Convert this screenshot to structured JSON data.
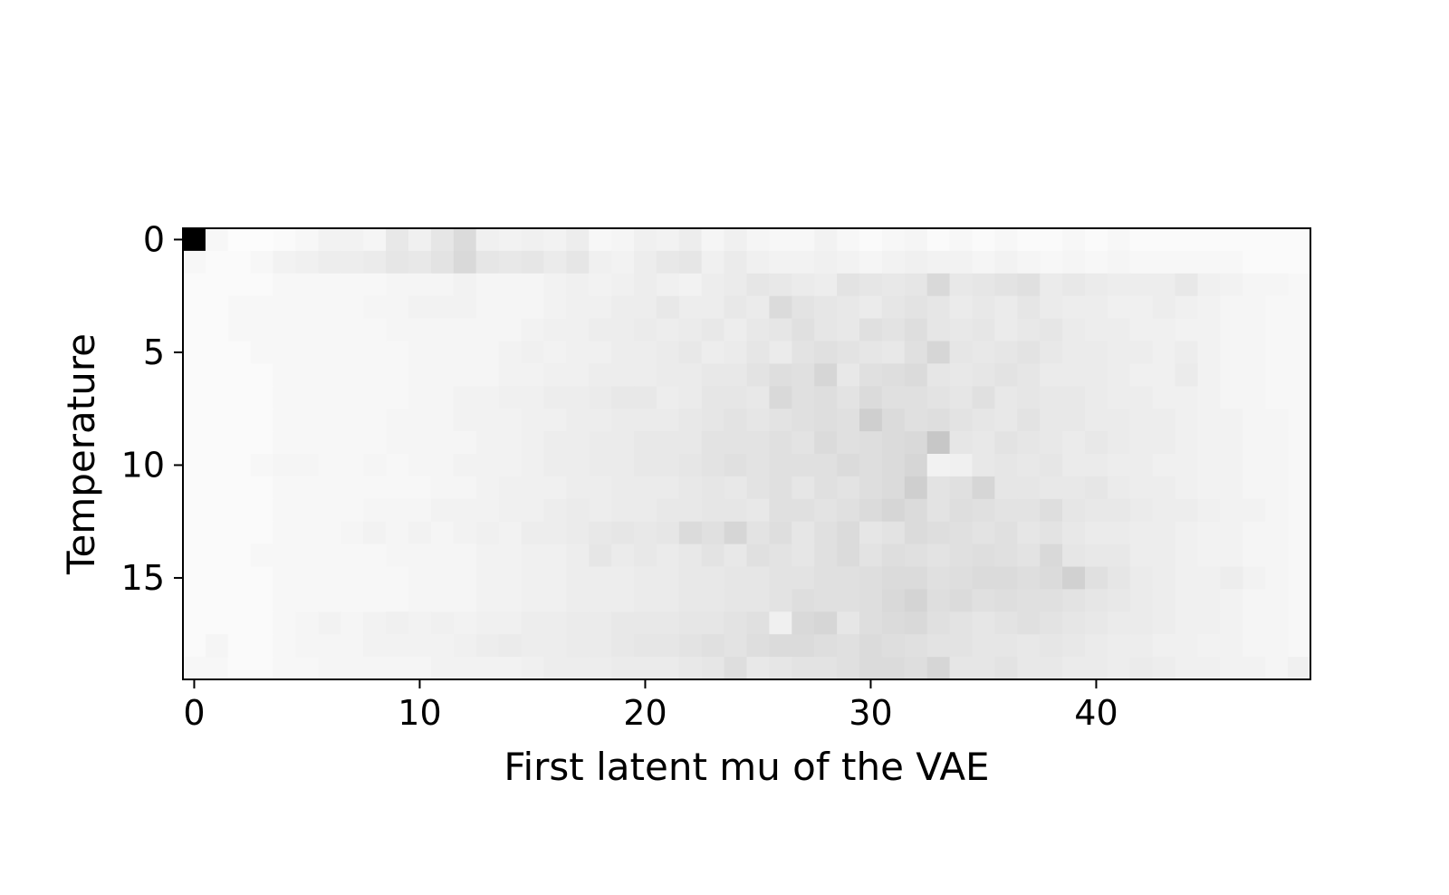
{
  "chart_data": {
    "type": "heatmap",
    "title": "",
    "xlabel": "First latent mu of the VAE",
    "ylabel": "Temperature",
    "n_cols": 50,
    "n_rows": 20,
    "xlim": [
      -0.5,
      49.5
    ],
    "ylim": [
      19.5,
      -0.5
    ],
    "x_ticks": [
      0,
      10,
      20,
      30,
      40
    ],
    "y_ticks": [
      0,
      5,
      10,
      15
    ],
    "x_tick_labels": [
      "0",
      "10",
      "20",
      "30",
      "40"
    ],
    "y_tick_labels": [
      "0",
      "5",
      "10",
      "15"
    ],
    "colormap": "Greys",
    "grid": false,
    "peak_cell": {
      "x": 0,
      "y": 0,
      "value": 1.0
    },
    "values": [
      [
        1.0,
        0.03,
        0.01,
        0.01,
        0.02,
        0.03,
        0.05,
        0.05,
        0.04,
        0.09,
        0.06,
        0.1,
        0.14,
        0.06,
        0.05,
        0.06,
        0.05,
        0.07,
        0.03,
        0.04,
        0.06,
        0.05,
        0.07,
        0.04,
        0.06,
        0.04,
        0.03,
        0.03,
        0.05,
        0.03,
        0.02,
        0.03,
        0.04,
        0.02,
        0.03,
        0.02,
        0.03,
        0.02,
        0.02,
        0.03,
        0.02,
        0.03,
        0.02,
        0.02,
        0.02,
        0.02,
        0.02,
        0.02,
        0.02,
        0.02
      ],
      [
        0.03,
        0.02,
        0.02,
        0.03,
        0.05,
        0.06,
        0.07,
        0.07,
        0.08,
        0.1,
        0.09,
        0.11,
        0.15,
        0.1,
        0.09,
        0.1,
        0.08,
        0.1,
        0.06,
        0.05,
        0.07,
        0.09,
        0.1,
        0.06,
        0.08,
        0.06,
        0.05,
        0.05,
        0.06,
        0.05,
        0.04,
        0.05,
        0.06,
        0.05,
        0.05,
        0.04,
        0.05,
        0.04,
        0.03,
        0.04,
        0.03,
        0.04,
        0.03,
        0.03,
        0.03,
        0.03,
        0.03,
        0.02,
        0.02,
        0.02
      ],
      [
        0.02,
        0.02,
        0.02,
        0.02,
        0.03,
        0.03,
        0.03,
        0.03,
        0.03,
        0.04,
        0.04,
        0.04,
        0.05,
        0.04,
        0.04,
        0.04,
        0.05,
        0.06,
        0.05,
        0.06,
        0.07,
        0.06,
        0.05,
        0.07,
        0.08,
        0.1,
        0.09,
        0.08,
        0.07,
        0.11,
        0.1,
        0.09,
        0.1,
        0.15,
        0.09,
        0.1,
        0.11,
        0.12,
        0.08,
        0.09,
        0.08,
        0.07,
        0.07,
        0.07,
        0.09,
        0.06,
        0.05,
        0.04,
        0.04,
        0.03
      ],
      [
        0.02,
        0.02,
        0.03,
        0.03,
        0.03,
        0.03,
        0.03,
        0.03,
        0.04,
        0.04,
        0.05,
        0.05,
        0.05,
        0.04,
        0.04,
        0.04,
        0.05,
        0.06,
        0.06,
        0.07,
        0.07,
        0.09,
        0.07,
        0.07,
        0.09,
        0.08,
        0.14,
        0.11,
        0.1,
        0.09,
        0.08,
        0.1,
        0.11,
        0.1,
        0.08,
        0.09,
        0.08,
        0.1,
        0.08,
        0.07,
        0.07,
        0.06,
        0.06,
        0.07,
        0.06,
        0.05,
        0.04,
        0.04,
        0.03,
        0.03
      ],
      [
        0.02,
        0.02,
        0.03,
        0.03,
        0.03,
        0.03,
        0.03,
        0.03,
        0.03,
        0.04,
        0.04,
        0.04,
        0.04,
        0.04,
        0.04,
        0.05,
        0.06,
        0.06,
        0.07,
        0.07,
        0.08,
        0.07,
        0.08,
        0.09,
        0.07,
        0.09,
        0.1,
        0.12,
        0.1,
        0.09,
        0.12,
        0.11,
        0.13,
        0.1,
        0.09,
        0.1,
        0.08,
        0.09,
        0.1,
        0.08,
        0.07,
        0.07,
        0.06,
        0.06,
        0.05,
        0.05,
        0.04,
        0.04,
        0.03,
        0.03
      ],
      [
        0.02,
        0.02,
        0.02,
        0.03,
        0.03,
        0.03,
        0.03,
        0.03,
        0.03,
        0.03,
        0.04,
        0.04,
        0.04,
        0.04,
        0.05,
        0.06,
        0.05,
        0.06,
        0.06,
        0.07,
        0.07,
        0.08,
        0.09,
        0.07,
        0.08,
        0.1,
        0.08,
        0.11,
        0.12,
        0.11,
        0.1,
        0.09,
        0.12,
        0.16,
        0.1,
        0.09,
        0.1,
        0.11,
        0.09,
        0.08,
        0.08,
        0.07,
        0.07,
        0.06,
        0.07,
        0.05,
        0.04,
        0.04,
        0.03,
        0.03
      ],
      [
        0.02,
        0.02,
        0.02,
        0.02,
        0.03,
        0.03,
        0.03,
        0.03,
        0.03,
        0.03,
        0.04,
        0.04,
        0.04,
        0.04,
        0.05,
        0.05,
        0.06,
        0.06,
        0.07,
        0.07,
        0.07,
        0.08,
        0.08,
        0.09,
        0.09,
        0.11,
        0.13,
        0.12,
        0.16,
        0.09,
        0.12,
        0.13,
        0.14,
        0.1,
        0.09,
        0.1,
        0.11,
        0.1,
        0.08,
        0.08,
        0.08,
        0.07,
        0.06,
        0.06,
        0.08,
        0.05,
        0.04,
        0.04,
        0.03,
        0.03
      ],
      [
        0.02,
        0.02,
        0.02,
        0.02,
        0.03,
        0.03,
        0.03,
        0.03,
        0.03,
        0.03,
        0.04,
        0.04,
        0.05,
        0.05,
        0.06,
        0.06,
        0.07,
        0.07,
        0.08,
        0.09,
        0.09,
        0.07,
        0.08,
        0.1,
        0.1,
        0.09,
        0.15,
        0.12,
        0.13,
        0.11,
        0.14,
        0.12,
        0.12,
        0.11,
        0.1,
        0.12,
        0.09,
        0.1,
        0.09,
        0.09,
        0.08,
        0.07,
        0.07,
        0.06,
        0.06,
        0.05,
        0.04,
        0.04,
        0.03,
        0.03
      ],
      [
        0.02,
        0.02,
        0.02,
        0.02,
        0.03,
        0.03,
        0.03,
        0.03,
        0.03,
        0.04,
        0.04,
        0.04,
        0.05,
        0.05,
        0.05,
        0.06,
        0.06,
        0.07,
        0.07,
        0.08,
        0.08,
        0.08,
        0.09,
        0.1,
        0.11,
        0.1,
        0.11,
        0.12,
        0.13,
        0.12,
        0.19,
        0.14,
        0.12,
        0.13,
        0.11,
        0.1,
        0.09,
        0.11,
        0.09,
        0.09,
        0.08,
        0.08,
        0.07,
        0.07,
        0.06,
        0.05,
        0.05,
        0.04,
        0.04,
        0.03
      ],
      [
        0.02,
        0.02,
        0.02,
        0.02,
        0.03,
        0.03,
        0.03,
        0.03,
        0.03,
        0.04,
        0.04,
        0.04,
        0.04,
        0.05,
        0.05,
        0.06,
        0.07,
        0.07,
        0.08,
        0.08,
        0.09,
        0.09,
        0.09,
        0.11,
        0.11,
        0.11,
        0.12,
        0.11,
        0.14,
        0.12,
        0.13,
        0.14,
        0.15,
        0.22,
        0.1,
        0.09,
        0.11,
        0.1,
        0.09,
        0.08,
        0.09,
        0.08,
        0.07,
        0.07,
        0.06,
        0.05,
        0.05,
        0.04,
        0.04,
        0.03
      ],
      [
        0.02,
        0.02,
        0.02,
        0.03,
        0.04,
        0.04,
        0.03,
        0.03,
        0.04,
        0.03,
        0.04,
        0.04,
        0.05,
        0.05,
        0.05,
        0.06,
        0.07,
        0.07,
        0.08,
        0.08,
        0.09,
        0.09,
        0.1,
        0.11,
        0.12,
        0.11,
        0.12,
        0.12,
        0.12,
        0.14,
        0.13,
        0.14,
        0.16,
        0.05,
        0.06,
        0.09,
        0.1,
        0.09,
        0.1,
        0.08,
        0.08,
        0.07,
        0.07,
        0.06,
        0.06,
        0.05,
        0.05,
        0.04,
        0.04,
        0.03
      ],
      [
        0.02,
        0.02,
        0.02,
        0.02,
        0.03,
        0.03,
        0.03,
        0.03,
        0.03,
        0.03,
        0.03,
        0.04,
        0.04,
        0.05,
        0.06,
        0.06,
        0.06,
        0.07,
        0.07,
        0.08,
        0.08,
        0.08,
        0.09,
        0.1,
        0.09,
        0.11,
        0.12,
        0.1,
        0.12,
        0.11,
        0.13,
        0.14,
        0.19,
        0.11,
        0.12,
        0.16,
        0.1,
        0.1,
        0.09,
        0.09,
        0.1,
        0.08,
        0.07,
        0.07,
        0.06,
        0.05,
        0.05,
        0.04,
        0.04,
        0.03
      ],
      [
        0.02,
        0.02,
        0.02,
        0.02,
        0.03,
        0.03,
        0.03,
        0.03,
        0.04,
        0.04,
        0.04,
        0.05,
        0.05,
        0.05,
        0.06,
        0.06,
        0.07,
        0.08,
        0.07,
        0.08,
        0.08,
        0.09,
        0.09,
        0.1,
        0.1,
        0.09,
        0.12,
        0.12,
        0.11,
        0.12,
        0.14,
        0.16,
        0.14,
        0.11,
        0.13,
        0.12,
        0.11,
        0.11,
        0.13,
        0.1,
        0.09,
        0.09,
        0.08,
        0.07,
        0.07,
        0.06,
        0.05,
        0.05,
        0.04,
        0.03
      ],
      [
        0.02,
        0.02,
        0.02,
        0.02,
        0.03,
        0.03,
        0.03,
        0.04,
        0.05,
        0.04,
        0.05,
        0.04,
        0.05,
        0.06,
        0.05,
        0.07,
        0.07,
        0.08,
        0.09,
        0.1,
        0.09,
        0.1,
        0.14,
        0.12,
        0.16,
        0.11,
        0.13,
        0.1,
        0.12,
        0.14,
        0.1,
        0.11,
        0.14,
        0.13,
        0.12,
        0.11,
        0.12,
        0.1,
        0.11,
        0.09,
        0.08,
        0.08,
        0.07,
        0.07,
        0.06,
        0.05,
        0.05,
        0.04,
        0.04,
        0.03
      ],
      [
        0.02,
        0.02,
        0.02,
        0.03,
        0.03,
        0.03,
        0.03,
        0.03,
        0.03,
        0.04,
        0.04,
        0.04,
        0.04,
        0.05,
        0.05,
        0.06,
        0.06,
        0.07,
        0.1,
        0.08,
        0.09,
        0.08,
        0.09,
        0.11,
        0.09,
        0.12,
        0.11,
        0.1,
        0.12,
        0.14,
        0.11,
        0.13,
        0.12,
        0.11,
        0.12,
        0.13,
        0.12,
        0.11,
        0.15,
        0.1,
        0.09,
        0.09,
        0.07,
        0.07,
        0.06,
        0.05,
        0.05,
        0.04,
        0.04,
        0.03
      ],
      [
        0.02,
        0.02,
        0.02,
        0.02,
        0.03,
        0.03,
        0.03,
        0.03,
        0.03,
        0.03,
        0.04,
        0.04,
        0.04,
        0.05,
        0.05,
        0.06,
        0.06,
        0.07,
        0.07,
        0.07,
        0.08,
        0.08,
        0.09,
        0.09,
        0.1,
        0.1,
        0.11,
        0.11,
        0.12,
        0.12,
        0.13,
        0.14,
        0.14,
        0.12,
        0.13,
        0.14,
        0.14,
        0.13,
        0.14,
        0.18,
        0.12,
        0.1,
        0.08,
        0.07,
        0.06,
        0.06,
        0.07,
        0.05,
        0.04,
        0.03
      ],
      [
        0.02,
        0.02,
        0.02,
        0.02,
        0.03,
        0.03,
        0.03,
        0.03,
        0.03,
        0.03,
        0.04,
        0.04,
        0.04,
        0.05,
        0.05,
        0.06,
        0.06,
        0.07,
        0.07,
        0.07,
        0.08,
        0.08,
        0.09,
        0.09,
        0.1,
        0.1,
        0.11,
        0.13,
        0.12,
        0.12,
        0.13,
        0.15,
        0.17,
        0.13,
        0.14,
        0.12,
        0.13,
        0.12,
        0.12,
        0.11,
        0.1,
        0.09,
        0.08,
        0.07,
        0.06,
        0.06,
        0.05,
        0.04,
        0.04,
        0.03
      ],
      [
        0.02,
        0.02,
        0.02,
        0.02,
        0.03,
        0.04,
        0.05,
        0.04,
        0.05,
        0.06,
        0.05,
        0.06,
        0.05,
        0.06,
        0.06,
        0.07,
        0.07,
        0.08,
        0.08,
        0.09,
        0.09,
        0.09,
        0.1,
        0.1,
        0.11,
        0.12,
        0.06,
        0.15,
        0.16,
        0.1,
        0.13,
        0.14,
        0.15,
        0.12,
        0.11,
        0.1,
        0.11,
        0.12,
        0.11,
        0.1,
        0.09,
        0.08,
        0.08,
        0.07,
        0.06,
        0.06,
        0.05,
        0.04,
        0.04,
        0.03
      ],
      [
        0.02,
        0.04,
        0.02,
        0.02,
        0.03,
        0.04,
        0.04,
        0.04,
        0.05,
        0.05,
        0.05,
        0.05,
        0.06,
        0.07,
        0.08,
        0.07,
        0.07,
        0.08,
        0.08,
        0.09,
        0.1,
        0.1,
        0.11,
        0.12,
        0.11,
        0.13,
        0.14,
        0.14,
        0.13,
        0.12,
        0.14,
        0.13,
        0.12,
        0.11,
        0.11,
        0.1,
        0.1,
        0.09,
        0.1,
        0.09,
        0.08,
        0.07,
        0.07,
        0.06,
        0.06,
        0.05,
        0.05,
        0.04,
        0.04,
        0.03
      ],
      [
        0.03,
        0.03,
        0.02,
        0.02,
        0.03,
        0.03,
        0.04,
        0.04,
        0.04,
        0.04,
        0.04,
        0.05,
        0.05,
        0.05,
        0.05,
        0.06,
        0.07,
        0.07,
        0.07,
        0.08,
        0.08,
        0.08,
        0.09,
        0.1,
        0.13,
        0.09,
        0.1,
        0.11,
        0.11,
        0.12,
        0.14,
        0.14,
        0.13,
        0.16,
        0.1,
        0.1,
        0.11,
        0.09,
        0.09,
        0.08,
        0.08,
        0.07,
        0.08,
        0.07,
        0.06,
        0.06,
        0.05,
        0.05,
        0.04,
        0.06
      ]
    ]
  }
}
